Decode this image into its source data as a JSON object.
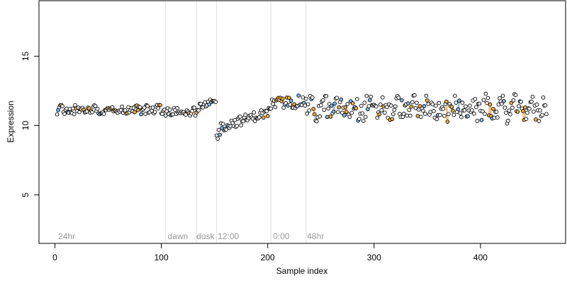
{
  "chart_data": {
    "type": "scatter",
    "title": "",
    "xlabel": "Sample index",
    "ylabel": "Expression",
    "xlim": [
      -15,
      480
    ],
    "ylim": [
      1.5,
      19.0
    ],
    "x_ticks": [
      0,
      100,
      200,
      300,
      400
    ],
    "y_ticks": [
      5,
      10,
      15
    ],
    "grid": false,
    "legend": "none",
    "colors": {
      "point_edge": "#000000",
      "black": "#ffffff",
      "orange": "#f5b041",
      "blue": "#85b8e6",
      "line_orange": "#f2c484",
      "line_blue": "#9cc3e8",
      "divider": "#e0e0e0",
      "region_text": "#9a9a9a"
    },
    "dividers": [
      104,
      133,
      152,
      203,
      236
    ],
    "regions": [
      {
        "label": "24hr",
        "x": 3
      },
      {
        "label": "dawn",
        "x": 106
      },
      {
        "label": "dusk",
        "x": 133
      },
      {
        "label": "12:00",
        "x": 153
      },
      {
        "label": "0:00",
        "x": 205
      },
      {
        "label": "48hr",
        "x": 237
      }
    ],
    "segments": [
      {
        "name": "24hr",
        "x_start": 2,
        "x_end": 103,
        "mean": 11.15,
        "amp": 0.35,
        "trend": 0.0
      },
      {
        "name": "dawn",
        "x_start": 104,
        "x_end": 132,
        "mean": 11.0,
        "amp": 0.3,
        "trend": 0.0
      },
      {
        "name": "dusk",
        "x_start": 133,
        "x_end": 151,
        "mean": 11.45,
        "amp": 0.3,
        "trend": 0.5
      },
      {
        "name": "12:00",
        "x_start": 152,
        "x_end": 202,
        "mean": 10.4,
        "amp": 0.35,
        "trend": 1.2
      },
      {
        "name": "0:00",
        "x_start": 203,
        "x_end": 235,
        "mean": 11.65,
        "amp": 0.45,
        "trend": 0.2
      },
      {
        "name": "48hr",
        "x_start": 236,
        "x_end": 462,
        "mean": 11.2,
        "amp": 0.75,
        "trend": 0.0
      }
    ]
  }
}
